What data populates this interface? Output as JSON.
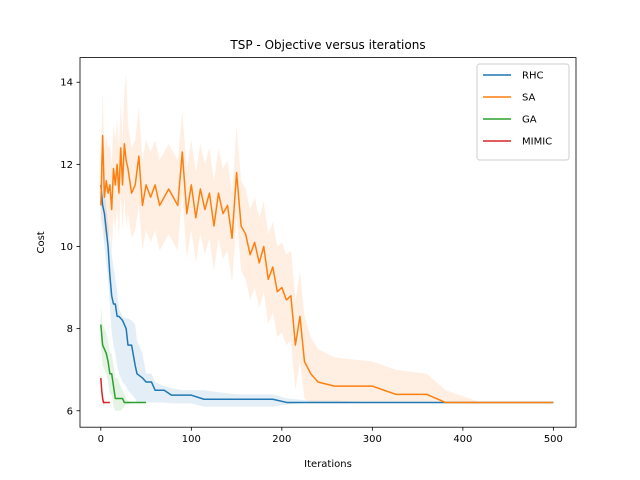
{
  "chart_data": {
    "type": "line",
    "title": "TSP - Objective versus iterations",
    "xlabel": "Iterations",
    "ylabel": "Cost",
    "xlim": [
      -23,
      525
    ],
    "ylim": [
      5.6,
      14.6
    ],
    "xticks": [
      0,
      100,
      200,
      300,
      400,
      500
    ],
    "yticks": [
      6,
      8,
      10,
      12,
      14
    ],
    "grid": false,
    "legend_position": "top-right",
    "series": [
      {
        "name": "RHC",
        "color": "#1f77b4",
        "x": [
          0,
          2,
          4,
          6,
          8,
          10,
          12,
          14,
          16,
          18,
          20,
          24,
          28,
          30,
          34,
          38,
          40,
          46,
          50,
          56,
          60,
          70,
          78,
          90,
          100,
          114,
          130,
          150,
          170,
          190,
          206,
          230,
          260,
          300,
          340,
          380,
          420,
          460,
          500
        ],
        "y": [
          11.5,
          11.0,
          10.8,
          10.4,
          10.0,
          9.3,
          8.8,
          8.6,
          8.6,
          8.3,
          8.3,
          8.2,
          8.0,
          7.6,
          7.6,
          7.1,
          6.9,
          6.8,
          6.7,
          6.7,
          6.5,
          6.5,
          6.38,
          6.38,
          6.38,
          6.28,
          6.28,
          6.28,
          6.28,
          6.28,
          6.2,
          6.2,
          6.2,
          6.2,
          6.2,
          6.2,
          6.2,
          6.2,
          6.2
        ],
        "band_upper": [
          12.3,
          11.8,
          11.4,
          11.0,
          10.6,
          10.2,
          9.8,
          9.5,
          9.2,
          8.9,
          8.5,
          8.3,
          8.25,
          8.25,
          8.2,
          8.1,
          7.7,
          7.4,
          6.9,
          6.9,
          6.7,
          6.6,
          6.55,
          6.5,
          6.5,
          6.5,
          6.45,
          6.4,
          6.4,
          6.4,
          6.3,
          6.25,
          6.25,
          6.2,
          6.2,
          6.2,
          6.2,
          6.2,
          6.2
        ],
        "band_lower": [
          10.8,
          10.4,
          10.0,
          9.6,
          9.2,
          8.6,
          7.9,
          7.6,
          7.4,
          7.1,
          6.9,
          6.7,
          6.6,
          6.5,
          6.4,
          6.3,
          6.2,
          6.2,
          6.2,
          6.2,
          6.2,
          6.2,
          6.18,
          6.18,
          6.18,
          6.1,
          6.1,
          6.1,
          6.1,
          6.1,
          6.15,
          6.2,
          6.2,
          6.2,
          6.2,
          6.2,
          6.2,
          6.2,
          6.2
        ]
      },
      {
        "name": "SA",
        "color": "#ff7f0e",
        "x": [
          0,
          2,
          4,
          6,
          8,
          10,
          12,
          14,
          16,
          18,
          20,
          22,
          24,
          26,
          28,
          30,
          34,
          38,
          42,
          46,
          50,
          55,
          60,
          65,
          70,
          75,
          80,
          85,
          90,
          95,
          100,
          105,
          110,
          115,
          120,
          125,
          130,
          135,
          140,
          145,
          150,
          155,
          160,
          165,
          170,
          175,
          180,
          185,
          190,
          195,
          200,
          205,
          210,
          215,
          220,
          225,
          232,
          240,
          258,
          300,
          326,
          360,
          381,
          420,
          460,
          500
        ],
        "y": [
          11.0,
          12.7,
          11.2,
          11.6,
          11.3,
          11.5,
          10.9,
          11.9,
          11.5,
          12.0,
          11.3,
          12.4,
          11.5,
          12.5,
          12.1,
          11.9,
          11.3,
          11.5,
          12.2,
          11.0,
          11.5,
          11.2,
          11.5,
          11.0,
          11.2,
          11.4,
          11.2,
          11.0,
          12.3,
          10.8,
          11.5,
          10.7,
          11.4,
          10.9,
          11.3,
          10.5,
          11.3,
          10.8,
          11.0,
          10.2,
          11.8,
          10.5,
          10.3,
          9.8,
          10.1,
          9.6,
          10.0,
          9.2,
          9.5,
          8.9,
          9.0,
          8.7,
          8.8,
          7.6,
          8.3,
          7.2,
          6.9,
          6.7,
          6.6,
          6.6,
          6.4,
          6.4,
          6.2,
          6.2,
          6.2,
          6.2
        ],
        "band_upper": [
          12.0,
          13.8,
          12.3,
          12.7,
          12.4,
          12.5,
          12.0,
          13.0,
          12.6,
          13.1,
          12.4,
          13.5,
          12.6,
          13.8,
          14.2,
          13.0,
          12.4,
          12.6,
          13.4,
          12.1,
          12.6,
          12.3,
          12.6,
          12.1,
          12.3,
          12.5,
          12.3,
          12.1,
          13.3,
          11.9,
          12.6,
          11.8,
          12.5,
          12.0,
          12.4,
          11.6,
          12.4,
          11.9,
          12.1,
          11.3,
          12.9,
          11.6,
          11.4,
          10.9,
          11.2,
          10.7,
          11.1,
          10.3,
          10.6,
          10.0,
          10.1,
          9.8,
          9.9,
          8.7,
          9.4,
          8.3,
          7.8,
          7.5,
          7.3,
          7.2,
          7.0,
          6.9,
          6.5,
          6.2,
          6.2,
          6.2
        ],
        "band_lower": [
          10.0,
          11.6,
          10.1,
          10.5,
          10.2,
          10.4,
          9.8,
          10.8,
          10.4,
          10.9,
          10.2,
          11.3,
          10.4,
          11.2,
          10.5,
          10.8,
          10.2,
          10.4,
          11.0,
          9.9,
          10.4,
          10.1,
          10.4,
          9.9,
          10.1,
          10.3,
          10.1,
          9.9,
          11.3,
          9.7,
          10.4,
          9.6,
          10.3,
          9.8,
          10.2,
          9.4,
          10.2,
          9.7,
          9.9,
          9.1,
          10.7,
          9.4,
          9.2,
          8.7,
          9.0,
          8.5,
          8.9,
          8.1,
          8.4,
          7.8,
          7.9,
          7.6,
          7.7,
          6.5,
          7.2,
          6.3,
          6.2,
          6.2,
          6.2,
          6.2,
          6.2,
          6.2,
          6.2,
          6.2,
          6.2,
          6.2
        ]
      },
      {
        "name": "GA",
        "color": "#2ca02c",
        "x": [
          0,
          2,
          4,
          6,
          8,
          10,
          12,
          14,
          16,
          18,
          20,
          22,
          24,
          26,
          28,
          30,
          35,
          40,
          45,
          50
        ],
        "y": [
          8.1,
          7.6,
          7.5,
          7.4,
          7.2,
          6.9,
          6.9,
          6.6,
          6.3,
          6.3,
          6.3,
          6.3,
          6.3,
          6.2,
          6.2,
          6.2,
          6.2,
          6.2,
          6.2,
          6.2
        ],
        "band_upper": [
          8.6,
          8.1,
          8.0,
          7.9,
          7.7,
          7.4,
          7.4,
          7.1,
          6.8,
          6.8,
          6.7,
          6.6,
          6.5,
          6.4,
          6.3,
          6.25,
          6.2,
          6.2,
          6.2,
          6.2
        ],
        "band_lower": [
          7.6,
          7.1,
          7.0,
          6.9,
          6.7,
          6.4,
          6.4,
          6.1,
          6.0,
          6.0,
          6.0,
          6.0,
          6.05,
          6.1,
          6.15,
          6.15,
          6.2,
          6.2,
          6.2,
          6.2
        ]
      },
      {
        "name": "MIMIC",
        "color": "#d62728",
        "x": [
          0,
          1,
          2,
          3,
          4,
          6,
          8,
          10
        ],
        "y": [
          6.8,
          6.5,
          6.3,
          6.2,
          6.2,
          6.2,
          6.2,
          6.2
        ],
        "band_upper": [
          7.0,
          6.7,
          6.45,
          6.3,
          6.25,
          6.2,
          6.2,
          6.2
        ],
        "band_lower": [
          6.6,
          6.3,
          6.15,
          6.1,
          6.15,
          6.2,
          6.2,
          6.2
        ]
      }
    ]
  }
}
